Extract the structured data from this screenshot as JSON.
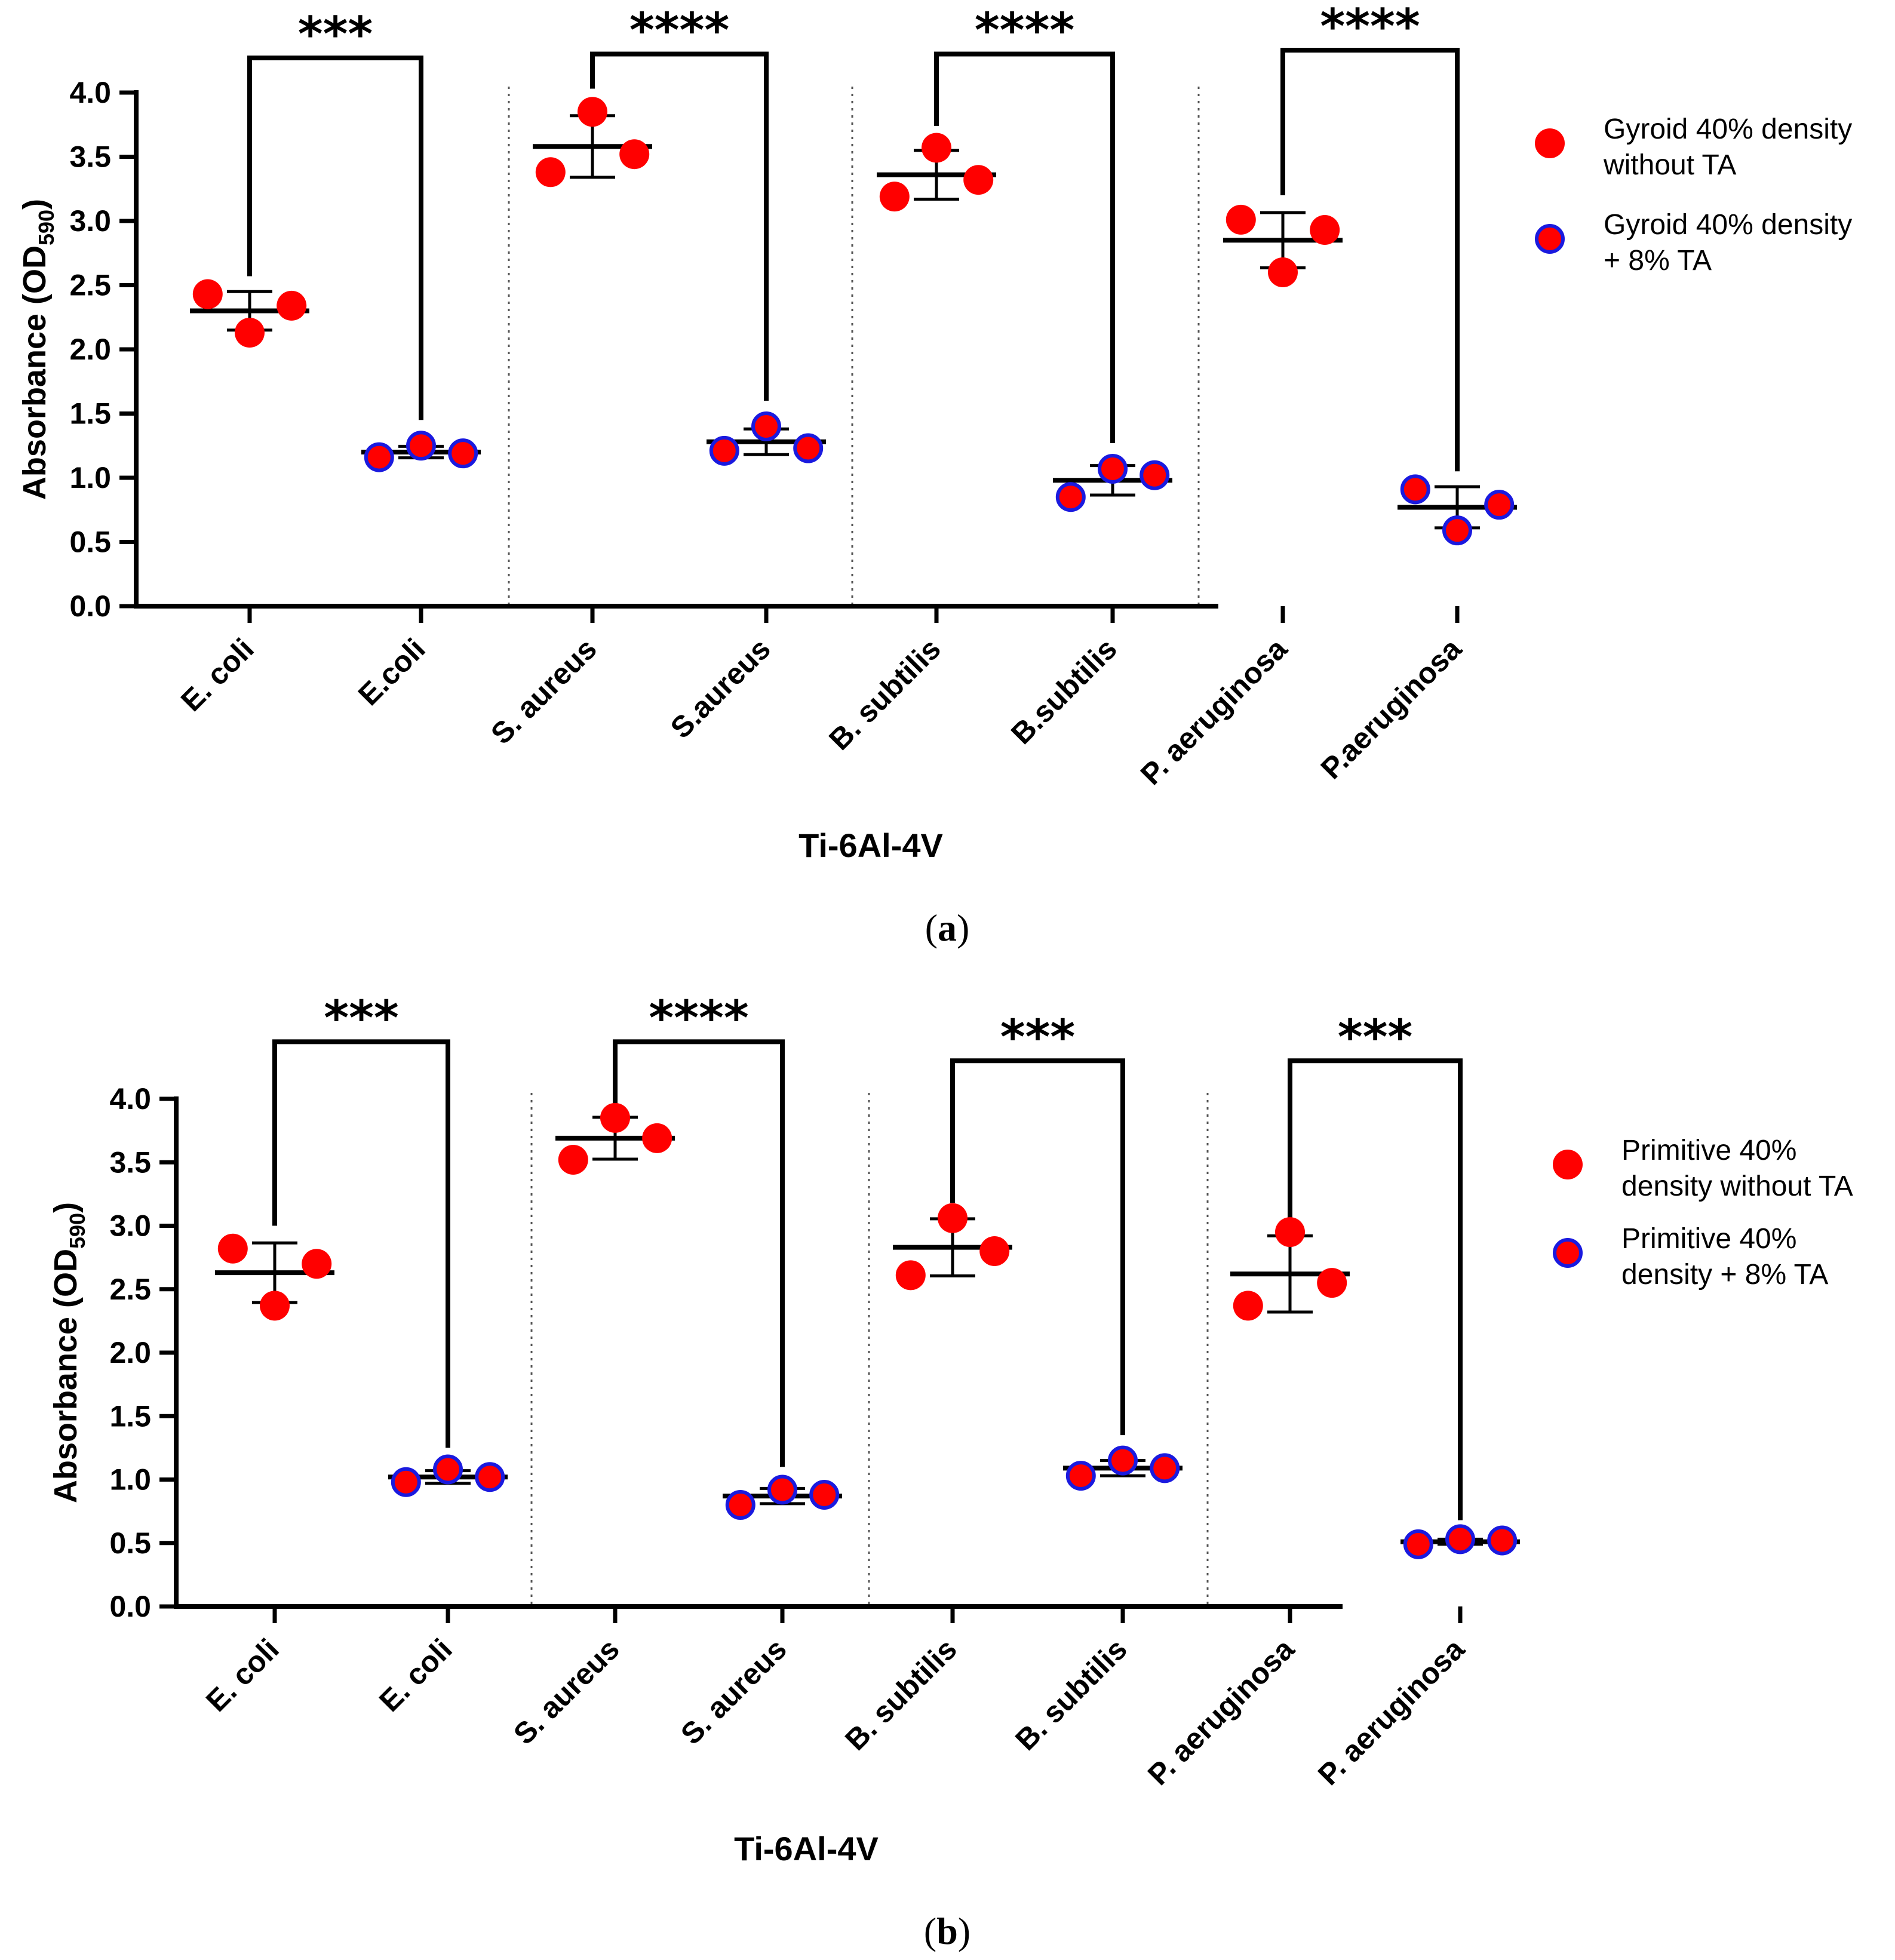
{
  "colors": {
    "fill_red": "#ff0000",
    "stroke_blue": "#1a1adf",
    "axis": "#000000"
  },
  "chart_data": [
    {
      "panel_label": "a",
      "type": "scatter",
      "title": "",
      "xlabel": "Ti-6Al-4V",
      "ylabel": "Absorbance (OD",
      "ylabel_sub": "590",
      "ylabel_tail": ")",
      "ylim": [
        0,
        4.0
      ],
      "yticks": [
        "0.0",
        "0.5",
        "1.0",
        "1.5",
        "2.0",
        "2.5",
        "3.0",
        "3.5",
        "4.0"
      ],
      "categories": [
        "E. coli",
        "E.coli",
        "S. aureus",
        "S.aureus",
        "B. subtilis",
        "B.subtilis",
        "P. aeruginosa",
        "P.aeruginosa"
      ],
      "legend": [
        {
          "line1": "Gyroid 40% density",
          "line2": "without TA",
          "style": "without"
        },
        {
          "line1": "Gyroid 40% density",
          "line2": "+ 8% TA",
          "style": "with"
        }
      ],
      "groups": [
        {
          "series": "without",
          "points": [
            2.43,
            2.13,
            2.34
          ],
          "mean": 2.3,
          "sd": 0.15
        },
        {
          "series": "with",
          "points": [
            1.16,
            1.25,
            1.19
          ],
          "mean": 1.2,
          "sd": 0.045
        },
        {
          "series": "without",
          "points": [
            3.38,
            3.85,
            3.52
          ],
          "mean": 3.58,
          "sd": 0.24
        },
        {
          "series": "with",
          "points": [
            1.21,
            1.4,
            1.23
          ],
          "mean": 1.28,
          "sd": 0.1
        },
        {
          "series": "without",
          "points": [
            3.19,
            3.57,
            3.32
          ],
          "mean": 3.36,
          "sd": 0.19
        },
        {
          "series": "with",
          "points": [
            0.85,
            1.07,
            1.02
          ],
          "mean": 0.98,
          "sd": 0.115
        },
        {
          "series": "without",
          "points": [
            3.01,
            2.6,
            2.93
          ],
          "mean": 2.85,
          "sd": 0.215
        },
        {
          "series": "with",
          "points": [
            0.91,
            0.59,
            0.79
          ],
          "mean": 0.77,
          "sd": 0.16
        }
      ],
      "significance": [
        {
          "from": 0,
          "to": 1,
          "label": "***",
          "left_y": 2.57,
          "right_y": 1.45,
          "top_y": 4.27
        },
        {
          "from": 2,
          "to": 3,
          "label": "****",
          "left_y": 4.03,
          "right_y": 1.6,
          "top_y": 4.3
        },
        {
          "from": 4,
          "to": 5,
          "label": "****",
          "left_y": 3.74,
          "right_y": 1.27,
          "top_y": 4.3
        },
        {
          "from": 6,
          "to": 7,
          "label": "****",
          "left_y": 3.2,
          "right_y": 1.05,
          "top_y": 4.33
        }
      ]
    },
    {
      "panel_label": "b",
      "type": "scatter",
      "title": "",
      "xlabel": "Ti-6Al-4V",
      "ylabel": "Absorbance (OD",
      "ylabel_sub": "590",
      "ylabel_tail": ")",
      "ylim": [
        0,
        4.0
      ],
      "yticks": [
        "0.0",
        "0.5",
        "1.0",
        "1.5",
        "2.0",
        "2.5",
        "3.0",
        "3.5",
        "4.0"
      ],
      "categories": [
        "E. coli",
        "E. coli",
        "S. aureus",
        "S. aureus",
        "B. subtilis",
        "B. subtilis",
        "P. aeruginosa",
        "P. aeruginosa"
      ],
      "legend": [
        {
          "line1": "Primitive 40%",
          "line2": "density without TA",
          "style": "without"
        },
        {
          "line1": "Primitive 40%",
          "line2": "density + 8% TA",
          "style": "with"
        }
      ],
      "groups": [
        {
          "series": "without",
          "points": [
            2.82,
            2.37,
            2.7
          ],
          "mean": 2.63,
          "sd": 0.235
        },
        {
          "series": "with",
          "points": [
            0.98,
            1.08,
            1.02
          ],
          "mean": 1.02,
          "sd": 0.05
        },
        {
          "series": "without",
          "points": [
            3.52,
            3.85,
            3.69
          ],
          "mean": 3.69,
          "sd": 0.165
        },
        {
          "series": "with",
          "points": [
            0.8,
            0.92,
            0.88
          ],
          "mean": 0.87,
          "sd": 0.06
        },
        {
          "series": "without",
          "points": [
            2.61,
            3.06,
            2.8
          ],
          "mean": 2.83,
          "sd": 0.225
        },
        {
          "series": "with",
          "points": [
            1.03,
            1.15,
            1.09
          ],
          "mean": 1.09,
          "sd": 0.06
        },
        {
          "series": "without",
          "points": [
            2.37,
            2.95,
            2.55
          ],
          "mean": 2.62,
          "sd": 0.3
        },
        {
          "series": "with",
          "points": [
            0.49,
            0.53,
            0.52
          ],
          "mean": 0.51,
          "sd": 0.02
        }
      ],
      "significance": [
        {
          "from": 0,
          "to": 1,
          "label": "***",
          "left_y": 3.0,
          "right_y": 1.25,
          "top_y": 4.45
        },
        {
          "from": 2,
          "to": 3,
          "label": "****",
          "left_y": 3.89,
          "right_y": 1.1,
          "top_y": 4.45
        },
        {
          "from": 4,
          "to": 5,
          "label": "***",
          "left_y": 3.18,
          "right_y": 1.35,
          "top_y": 4.3
        },
        {
          "from": 6,
          "to": 7,
          "label": "***",
          "left_y": 3.0,
          "right_y": 0.68,
          "top_y": 4.3
        }
      ]
    }
  ]
}
